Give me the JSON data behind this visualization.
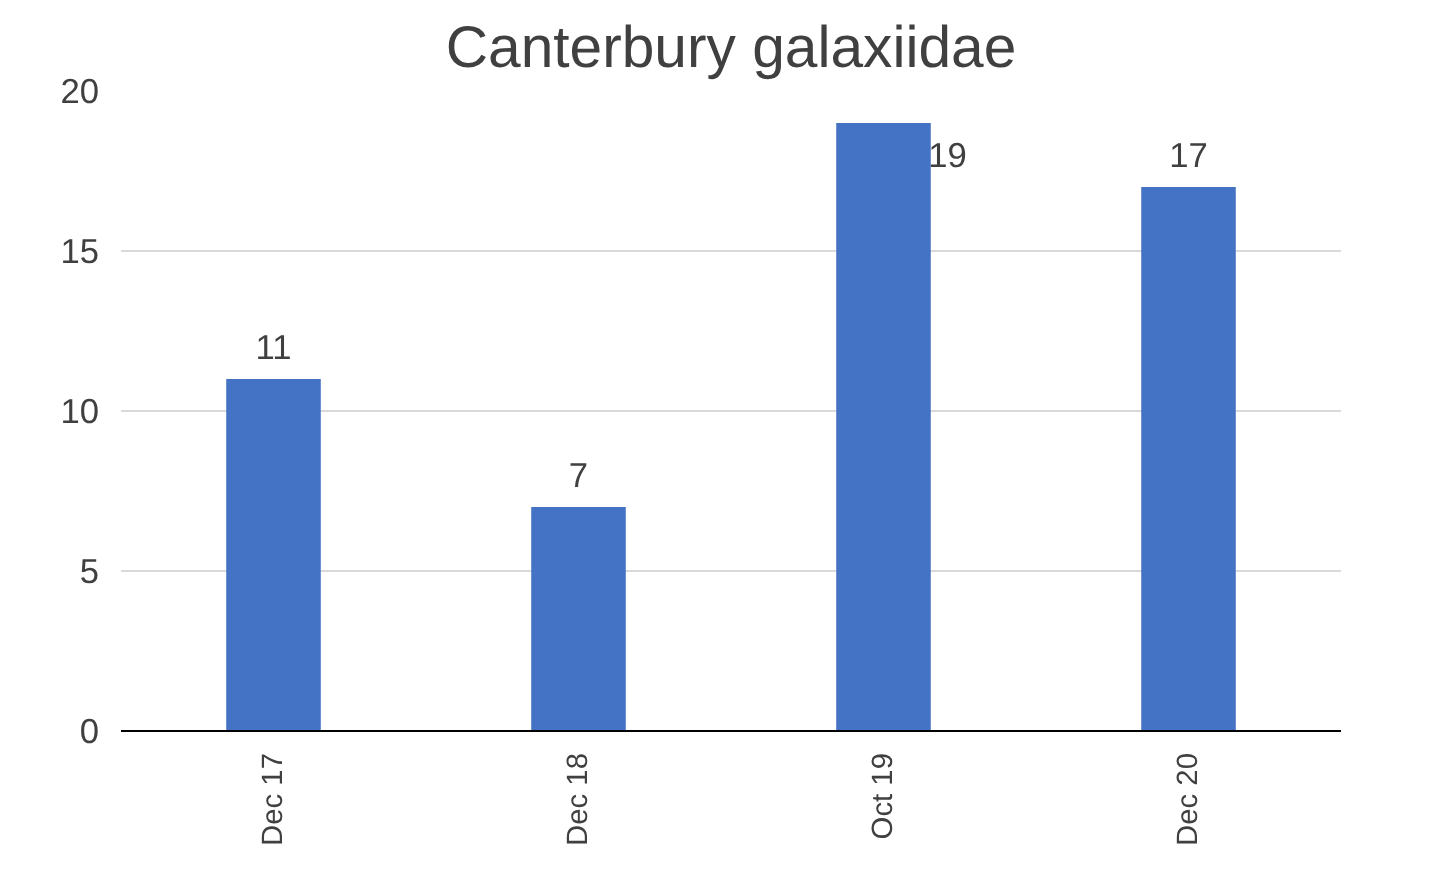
{
  "chart_data": {
    "type": "bar",
    "title": "Canterbury galaxiidae",
    "categories": [
      "Dec 17",
      "Dec 18",
      "Oct 19",
      "Dec 20"
    ],
    "values": [
      11,
      7,
      19,
      17
    ],
    "color": "#4472c4",
    "ylim": [
      0,
      20
    ],
    "yticks": [
      0,
      5,
      10,
      15,
      20
    ],
    "grid": "y",
    "data_labels": true
  }
}
